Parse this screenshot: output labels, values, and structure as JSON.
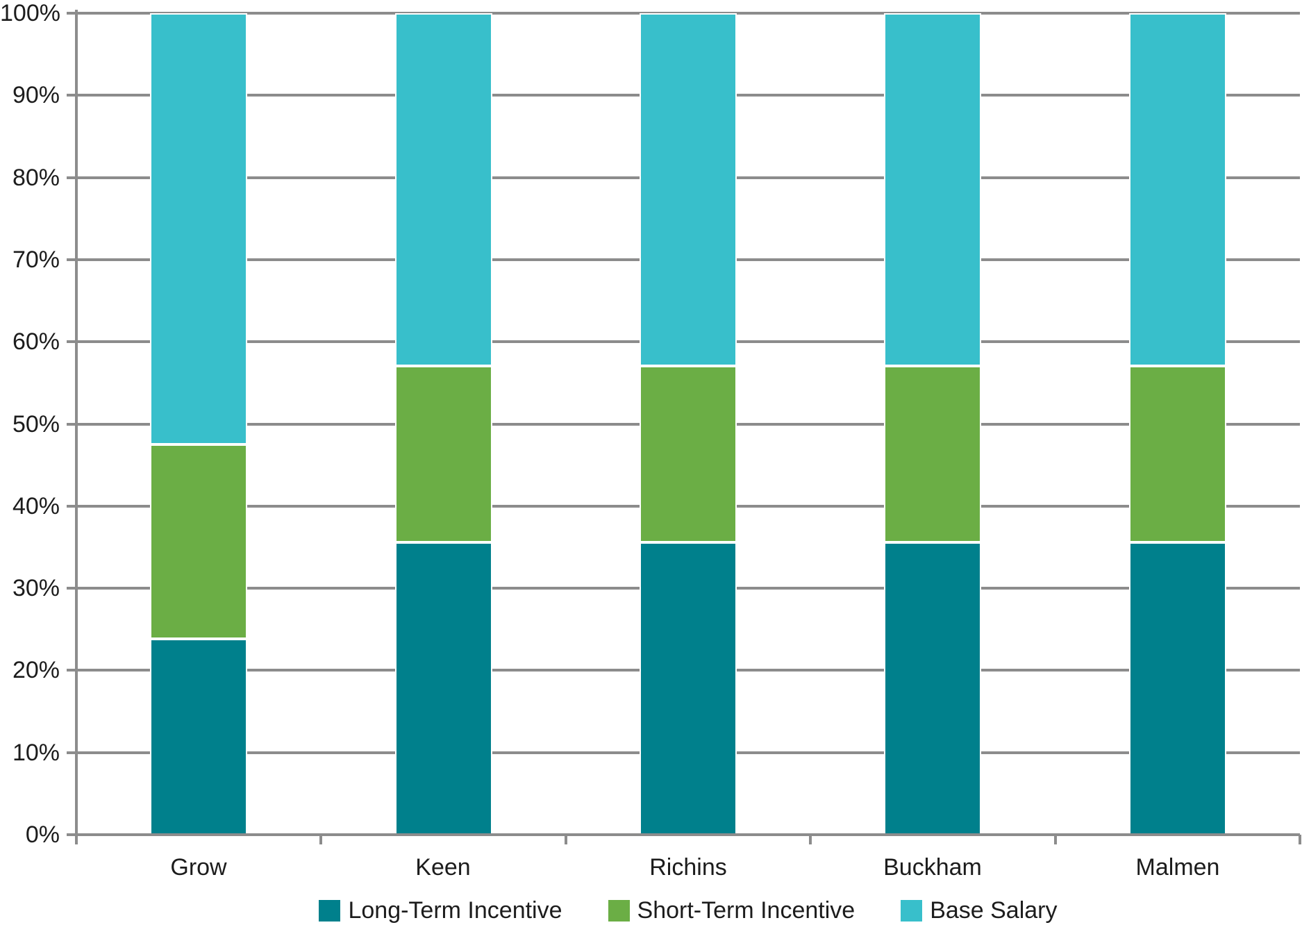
{
  "chart_data": {
    "type": "bar",
    "subtype": "stacked-100-percent",
    "title": "",
    "categories": [
      "Grow",
      "Keen",
      "Richins",
      "Buckham",
      "Malmen"
    ],
    "series": [
      {
        "name": "Long-Term Incentive",
        "color": "#00808C",
        "values": [
          23.8,
          35.6,
          35.6,
          35.6,
          35.6
        ]
      },
      {
        "name": "Short-Term Incentive",
        "color": "#6BAE45",
        "values": [
          23.7,
          21.5,
          21.5,
          21.5,
          21.5
        ]
      },
      {
        "name": "Base Salary",
        "color": "#38BFCB",
        "values": [
          52.5,
          42.9,
          42.9,
          42.9,
          42.9
        ]
      }
    ],
    "y_axis": {
      "min": 0,
      "max": 100,
      "step": 10,
      "tick_labels": [
        "0%",
        "10%",
        "20%",
        "30%",
        "40%",
        "50%",
        "60%",
        "70%",
        "80%",
        "90%",
        "100%"
      ],
      "format": "percent"
    },
    "x_axis": {
      "label": ""
    },
    "legend": {
      "position": "bottom",
      "entries": [
        "Long-Term Incentive",
        "Short-Term Incentive",
        "Base Salary"
      ]
    },
    "grid": true,
    "colors": {
      "gridline": "#8C8C8C",
      "axis": "#8C8C8C",
      "text": "#1C1C1C",
      "background": "#FFFFFF",
      "bar_border": "#FFFFFF"
    }
  }
}
